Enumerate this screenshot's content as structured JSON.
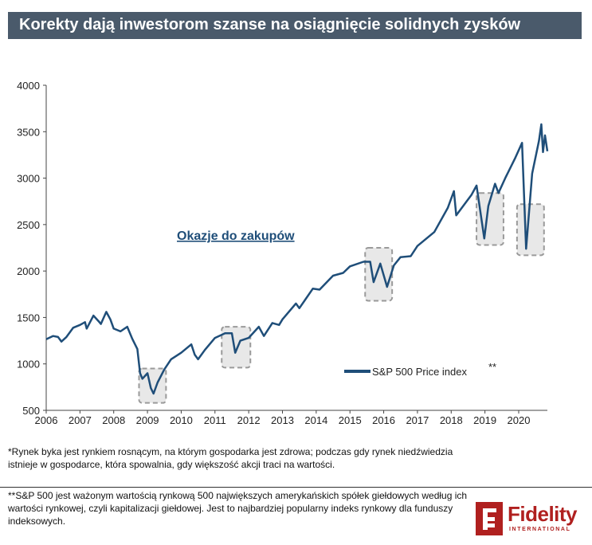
{
  "title": "Korekty dają inwestorom szanse na osiągnięcie solidnych zysków",
  "annotation": "Okazje do zakupów",
  "footnotes": {
    "first": "*Rynek byka jest rynkiem rosnącym, na którym gospodarka jest zdrowa; podczas gdy rynek niedźwiedzia istnieje w gospodarce, która spowalnia, gdy większość akcji traci na wartości.",
    "second": "**S&P 500 jest ważonym wartością rynkową 500 największych amerykańskich spółek giełdowych według ich wartości rynkowej, czyli kapitalizacji giełdowej. Jest to najbardziej popularny indeks rynkowy dla funduszy indeksowych."
  },
  "logo": {
    "name": "Fidelity",
    "sub": "INTERNATIONAL",
    "color": "#b0201f"
  },
  "chart_data": {
    "type": "line",
    "title": "",
    "xlabel": "",
    "ylabel": "",
    "xlim": [
      2006.0,
      2020.85
    ],
    "ylim": [
      500,
      4000
    ],
    "x_ticks": [
      "2006",
      "2007",
      "2008",
      "2009",
      "2010",
      "2011",
      "2012",
      "2013",
      "2014",
      "2015",
      "2016",
      "2017",
      "2018",
      "2019",
      "2020"
    ],
    "y_ticks": [
      "500",
      "1000",
      "1500",
      "2000",
      "2500",
      "3000",
      "3500",
      "4000"
    ],
    "grid": false,
    "legend_position": "bottom-right",
    "series": [
      {
        "name": "S&P 500 Price index",
        "marker": "**",
        "color": "#1f4e79",
        "x": [
          2006.0,
          2006.2,
          2006.35,
          2006.45,
          2006.6,
          2006.8,
          2007.0,
          2007.15,
          2007.2,
          2007.4,
          2007.55,
          2007.62,
          2007.78,
          2007.9,
          2008.0,
          2008.2,
          2008.4,
          2008.55,
          2008.7,
          2008.78,
          2008.85,
          2009.0,
          2009.1,
          2009.18,
          2009.3,
          2009.5,
          2009.7,
          2010.0,
          2010.3,
          2010.4,
          2010.5,
          2010.7,
          2011.0,
          2011.3,
          2011.5,
          2011.6,
          2011.75,
          2012.0,
          2012.3,
          2012.45,
          2012.7,
          2012.9,
          2013.0,
          2013.4,
          2013.5,
          2013.9,
          2014.1,
          2014.5,
          2014.8,
          2015.0,
          2015.4,
          2015.6,
          2015.7,
          2015.9,
          2016.1,
          2016.3,
          2016.5,
          2016.8,
          2017.0,
          2017.5,
          2017.9,
          2018.08,
          2018.15,
          2018.6,
          2018.75,
          2018.98,
          2019.1,
          2019.3,
          2019.4,
          2019.6,
          2019.9,
          2020.1,
          2020.22,
          2020.4,
          2020.6,
          2020.67,
          2020.72,
          2020.78,
          2020.85
        ],
        "values": [
          1265,
          1300,
          1290,
          1240,
          1290,
          1390,
          1420,
          1450,
          1380,
          1520,
          1460,
          1430,
          1560,
          1480,
          1380,
          1350,
          1400,
          1270,
          1160,
          900,
          840,
          900,
          740,
          680,
          800,
          940,
          1050,
          1120,
          1210,
          1100,
          1050,
          1150,
          1280,
          1330,
          1330,
          1120,
          1250,
          1280,
          1400,
          1300,
          1440,
          1420,
          1480,
          1650,
          1600,
          1810,
          1800,
          1950,
          1980,
          2050,
          2100,
          2100,
          1880,
          2080,
          1830,
          2060,
          2150,
          2160,
          2270,
          2420,
          2680,
          2860,
          2600,
          2820,
          2920,
          2350,
          2700,
          2940,
          2840,
          3000,
          3220,
          3380,
          2240,
          3050,
          3400,
          3580,
          3280,
          3460,
          3290
        ]
      }
    ],
    "highlight_periods": [
      {
        "x_range": [
          2008.75,
          2009.55
        ],
        "y_range": [
          580,
          950
        ]
      },
      {
        "x_range": [
          2011.2,
          2012.05
        ],
        "y_range": [
          960,
          1400
        ]
      },
      {
        "x_range": [
          2015.45,
          2016.25
        ],
        "y_range": [
          1680,
          2250
        ]
      },
      {
        "x_range": [
          2018.75,
          2019.55
        ],
        "y_range": [
          2280,
          2840
        ]
      },
      {
        "x_range": [
          2019.95,
          2020.75
        ],
        "y_range": [
          2170,
          2720
        ]
      }
    ]
  }
}
